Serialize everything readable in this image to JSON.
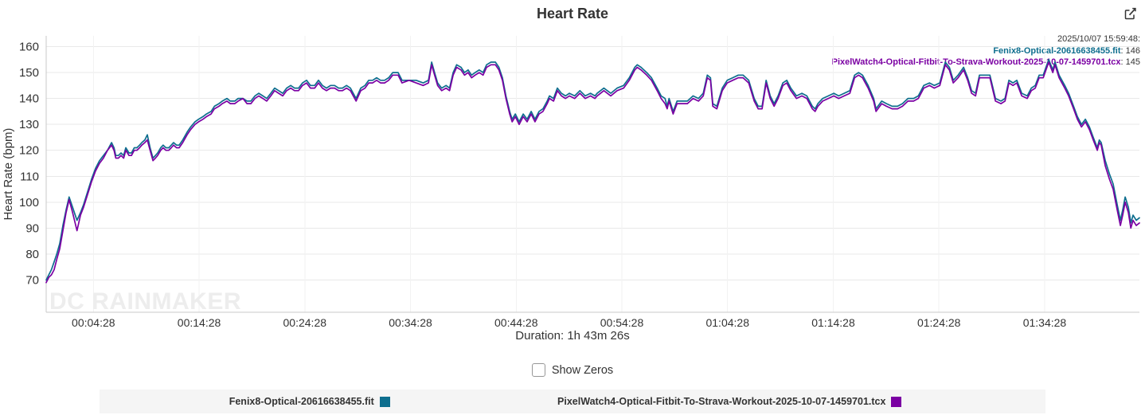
{
  "header": {
    "title": "Heart Rate"
  },
  "tooltip": {
    "datetime": "2025/10/07 15:59:48:",
    "rows": [
      {
        "name": "Fenix8-Optical-20616638455.fit",
        "value": ": 146",
        "color": "#0e6e8e"
      },
      {
        "name": "PixelWatch4-Optical-Fitbit-To-Strava-Workout-2025-10-07-1459701.tcx",
        "value": ": 145",
        "color": "#7b00a3"
      }
    ]
  },
  "controls": {
    "show_zeros_label": "Show Zeros",
    "show_zeros_checked": false
  },
  "legend": {
    "items": [
      {
        "label": "Fenix8-Optical-20616638455.fit",
        "color": "#0e6e8e"
      },
      {
        "label": "PixelWatch4-Optical-Fitbit-To-Strava-Workout-2025-10-07-1459701.tcx",
        "color": "#7b00a3"
      }
    ]
  },
  "chart_data": {
    "type": "line",
    "title": "Heart Rate",
    "ylabel": "Heart Rate (bpm)",
    "xlabel": "Duration: 1h 43m 26s",
    "watermark": "DC RAINMAKER",
    "grid": true,
    "legend_position": "bottom",
    "x_max_seconds": 6206,
    "ylim": [
      70,
      160
    ],
    "yticks": [
      70,
      80,
      90,
      100,
      110,
      120,
      130,
      140,
      150,
      160
    ],
    "xticks": [
      {
        "s": 268,
        "label": "00:04:28"
      },
      {
        "s": 868,
        "label": "00:14:28"
      },
      {
        "s": 1468,
        "label": "00:24:28"
      },
      {
        "s": 2068,
        "label": "00:34:28"
      },
      {
        "s": 2668,
        "label": "00:44:28"
      },
      {
        "s": 3268,
        "label": "00:54:28"
      },
      {
        "s": 3868,
        "label": "01:04:28"
      },
      {
        "s": 4468,
        "label": "01:14:28"
      },
      {
        "s": 5068,
        "label": "01:24:28"
      },
      {
        "s": 5668,
        "label": "01:34:28"
      }
    ],
    "series": [
      {
        "name": "Fenix8-Optical-20616638455.fit",
        "color": "#0e6e8e"
      },
      {
        "name": "PixelWatch4-Optical-Fitbit-To-Strava-Workout-2025-10-07-1459701.tcx",
        "color": "#7b00a3"
      }
    ],
    "points": [
      [
        0,
        70,
        69
      ],
      [
        15,
        72,
        71
      ],
      [
        30,
        74,
        72
      ],
      [
        45,
        77,
        74
      ],
      [
        60,
        80,
        78
      ],
      [
        77,
        84,
        82
      ],
      [
        95,
        91,
        89
      ],
      [
        113,
        97,
        96
      ],
      [
        130,
        102,
        101
      ],
      [
        150,
        98,
        96
      ],
      [
        175,
        93,
        89
      ],
      [
        195,
        96,
        95
      ],
      [
        212,
        99,
        98
      ],
      [
        235,
        104,
        103
      ],
      [
        258,
        109,
        108
      ],
      [
        280,
        113,
        112
      ],
      [
        303,
        116,
        115
      ],
      [
        325,
        118,
        117
      ],
      [
        348,
        120,
        120
      ],
      [
        371,
        123,
        122
      ],
      [
        385,
        121,
        120
      ],
      [
        395,
        118,
        117
      ],
      [
        410,
        118,
        117
      ],
      [
        425,
        119,
        118
      ],
      [
        440,
        118,
        117
      ],
      [
        452,
        121,
        120
      ],
      [
        470,
        119,
        118
      ],
      [
        484,
        119,
        118
      ],
      [
        500,
        121,
        120
      ],
      [
        515,
        121,
        120
      ],
      [
        530,
        122,
        121
      ],
      [
        543,
        123,
        122
      ],
      [
        560,
        124,
        123
      ],
      [
        574,
        126,
        124
      ],
      [
        590,
        121,
        120
      ],
      [
        606,
        117,
        116
      ],
      [
        620,
        118,
        117
      ],
      [
        633,
        119,
        118
      ],
      [
        650,
        121,
        120
      ],
      [
        664,
        122,
        121
      ],
      [
        680,
        121,
        120
      ],
      [
        696,
        121,
        120
      ],
      [
        710,
        122,
        121
      ],
      [
        723,
        123,
        122
      ],
      [
        740,
        122,
        121
      ],
      [
        755,
        122,
        121
      ],
      [
        775,
        124,
        123
      ],
      [
        800,
        127,
        126
      ],
      [
        820,
        129,
        128
      ],
      [
        845,
        131,
        130
      ],
      [
        865,
        132,
        131
      ],
      [
        890,
        133,
        132
      ],
      [
        910,
        134,
        133
      ],
      [
        936,
        135,
        134
      ],
      [
        955,
        137,
        136
      ],
      [
        981,
        138,
        137
      ],
      [
        1000,
        139,
        138
      ],
      [
        1026,
        140,
        139
      ],
      [
        1045,
        139,
        138
      ],
      [
        1071,
        139,
        138
      ],
      [
        1090,
        140,
        139
      ],
      [
        1117,
        140,
        140
      ],
      [
        1140,
        139,
        138
      ],
      [
        1162,
        139,
        138
      ],
      [
        1185,
        141,
        140
      ],
      [
        1207,
        142,
        141
      ],
      [
        1230,
        141,
        140
      ],
      [
        1252,
        140,
        139
      ],
      [
        1275,
        142,
        141
      ],
      [
        1297,
        144,
        143
      ],
      [
        1320,
        143,
        142
      ],
      [
        1343,
        142,
        141
      ],
      [
        1365,
        144,
        143
      ],
      [
        1388,
        145,
        144
      ],
      [
        1410,
        144,
        143
      ],
      [
        1433,
        144,
        143
      ],
      [
        1455,
        146,
        145
      ],
      [
        1478,
        147,
        146
      ],
      [
        1500,
        145,
        144
      ],
      [
        1524,
        145,
        144
      ],
      [
        1546,
        147,
        146
      ],
      [
        1568,
        145,
        144
      ],
      [
        1591,
        144,
        143
      ],
      [
        1614,
        145,
        144
      ],
      [
        1637,
        145,
        144
      ],
      [
        1660,
        144,
        143
      ],
      [
        1682,
        144,
        143
      ],
      [
        1705,
        145,
        144
      ],
      [
        1727,
        144,
        143
      ],
      [
        1759,
        140,
        139
      ],
      [
        1786,
        144,
        143
      ],
      [
        1810,
        145,
        144
      ],
      [
        1831,
        147,
        146
      ],
      [
        1853,
        147,
        146
      ],
      [
        1876,
        148,
        147
      ],
      [
        1898,
        147,
        146
      ],
      [
        1921,
        147,
        146
      ],
      [
        1944,
        148,
        147
      ],
      [
        1967,
        150,
        149
      ],
      [
        1998,
        150,
        149
      ],
      [
        2020,
        147,
        146
      ],
      [
        2060,
        147,
        147
      ],
      [
        2100,
        147,
        146
      ],
      [
        2140,
        146,
        145
      ],
      [
        2170,
        147,
        146
      ],
      [
        2188,
        154,
        153
      ],
      [
        2205,
        150,
        149
      ],
      [
        2222,
        146,
        145
      ],
      [
        2245,
        144,
        143
      ],
      [
        2270,
        145,
        144
      ],
      [
        2290,
        144,
        143
      ],
      [
        2310,
        150,
        149
      ],
      [
        2330,
        153,
        152
      ],
      [
        2355,
        152,
        151
      ],
      [
        2375,
        150,
        149
      ],
      [
        2395,
        151,
        150
      ],
      [
        2415,
        149,
        148
      ],
      [
        2435,
        150,
        149
      ],
      [
        2458,
        151,
        150
      ],
      [
        2480,
        150,
        149
      ],
      [
        2500,
        153,
        152
      ],
      [
        2525,
        154,
        153
      ],
      [
        2550,
        154,
        153
      ],
      [
        2570,
        152,
        151
      ],
      [
        2590,
        148,
        147
      ],
      [
        2610,
        141,
        140
      ],
      [
        2631,
        135,
        134
      ],
      [
        2645,
        132,
        131
      ],
      [
        2663,
        134,
        133
      ],
      [
        2685,
        131,
        130
      ],
      [
        2708,
        134,
        133
      ],
      [
        2730,
        132,
        131
      ],
      [
        2753,
        135,
        134
      ],
      [
        2775,
        132,
        131
      ],
      [
        2798,
        135,
        134
      ],
      [
        2820,
        136,
        135
      ],
      [
        2844,
        139,
        138
      ],
      [
        2857,
        141,
        140
      ],
      [
        2880,
        140,
        139
      ],
      [
        2902,
        144,
        143
      ],
      [
        2925,
        142,
        141
      ],
      [
        2948,
        141,
        140
      ],
      [
        2970,
        142,
        141
      ],
      [
        3000,
        141,
        140
      ],
      [
        3030,
        143,
        142
      ],
      [
        3060,
        141,
        140
      ],
      [
        3090,
        142,
        141
      ],
      [
        3115,
        141,
        140
      ],
      [
        3128,
        142,
        141
      ],
      [
        3166,
        144,
        143
      ],
      [
        3205,
        142,
        141
      ],
      [
        3241,
        144,
        143
      ],
      [
        3278,
        145,
        144
      ],
      [
        3310,
        148,
        147
      ],
      [
        3341,
        152,
        151
      ],
      [
        3355,
        153,
        152
      ],
      [
        3377,
        152,
        151
      ],
      [
        3409,
        150,
        149
      ],
      [
        3436,
        148,
        147
      ],
      [
        3468,
        144,
        143
      ],
      [
        3491,
        141,
        140
      ],
      [
        3513,
        140,
        138
      ],
      [
        3525,
        137,
        136
      ],
      [
        3536,
        140,
        139
      ],
      [
        3559,
        135,
        134
      ],
      [
        3581,
        139,
        138
      ],
      [
        3613,
        139,
        138
      ],
      [
        3640,
        139,
        138
      ],
      [
        3672,
        141,
        140
      ],
      [
        3703,
        140,
        139
      ],
      [
        3730,
        142,
        141
      ],
      [
        3753,
        149,
        148
      ],
      [
        3771,
        148,
        147
      ],
      [
        3784,
        138,
        137
      ],
      [
        3807,
        137,
        136
      ],
      [
        3838,
        144,
        143
      ],
      [
        3866,
        147,
        146
      ],
      [
        3897,
        148,
        147
      ],
      [
        3929,
        149,
        148
      ],
      [
        3956,
        149,
        148
      ],
      [
        3988,
        147,
        146
      ],
      [
        4019,
        140,
        139
      ],
      [
        4042,
        137,
        136
      ],
      [
        4064,
        137,
        136
      ],
      [
        4087,
        147,
        146
      ],
      [
        4110,
        141,
        140
      ],
      [
        4132,
        138,
        137
      ],
      [
        4155,
        141,
        140
      ],
      [
        4182,
        146,
        145
      ],
      [
        4204,
        147,
        146
      ],
      [
        4227,
        144,
        143
      ],
      [
        4259,
        141,
        140
      ],
      [
        4290,
        142,
        141
      ],
      [
        4318,
        141,
        140
      ],
      [
        4349,
        137,
        136
      ],
      [
        4365,
        136,
        135
      ],
      [
        4381,
        138,
        137
      ],
      [
        4408,
        140,
        139
      ],
      [
        4440,
        141,
        140
      ],
      [
        4471,
        142,
        141
      ],
      [
        4499,
        141,
        140
      ],
      [
        4530,
        142,
        141
      ],
      [
        4562,
        143,
        142
      ],
      [
        4589,
        149,
        148
      ],
      [
        4612,
        150,
        149
      ],
      [
        4634,
        149,
        148
      ],
      [
        4666,
        145,
        144
      ],
      [
        4697,
        140,
        139
      ],
      [
        4711,
        136,
        135
      ],
      [
        4743,
        139,
        138
      ],
      [
        4770,
        138,
        137
      ],
      [
        4802,
        137,
        136
      ],
      [
        4833,
        137,
        136
      ],
      [
        4861,
        138,
        137
      ],
      [
        4892,
        140,
        139
      ],
      [
        4924,
        140,
        139
      ],
      [
        4951,
        141,
        140
      ],
      [
        4982,
        145,
        144
      ],
      [
        5014,
        146,
        145
      ],
      [
        5041,
        145,
        144
      ],
      [
        5073,
        146,
        145
      ],
      [
        5104,
        154,
        153
      ],
      [
        5127,
        152,
        151
      ],
      [
        5149,
        147,
        146
      ],
      [
        5177,
        149,
        148
      ],
      [
        5208,
        152,
        151
      ],
      [
        5231,
        148,
        147
      ],
      [
        5253,
        143,
        142
      ],
      [
        5276,
        142,
        141
      ],
      [
        5298,
        149,
        148
      ],
      [
        5330,
        149,
        148
      ],
      [
        5357,
        149,
        148
      ],
      [
        5389,
        140,
        139
      ],
      [
        5420,
        139,
        138
      ],
      [
        5443,
        140,
        139
      ],
      [
        5465,
        147,
        146
      ],
      [
        5488,
        146,
        145
      ],
      [
        5510,
        147,
        146
      ],
      [
        5538,
        142,
        141
      ],
      [
        5569,
        141,
        140
      ],
      [
        5592,
        144,
        143
      ],
      [
        5615,
        145,
        144
      ],
      [
        5637,
        149,
        148
      ],
      [
        5660,
        149,
        148
      ],
      [
        5691,
        155,
        154
      ],
      [
        5714,
        151,
        150
      ],
      [
        5727,
        154,
        153
      ],
      [
        5750,
        149,
        148
      ],
      [
        5782,
        145,
        144
      ],
      [
        5804,
        142,
        141
      ],
      [
        5832,
        137,
        136
      ],
      [
        5854,
        133,
        132
      ],
      [
        5877,
        130,
        129
      ],
      [
        5899,
        132,
        131
      ],
      [
        5922,
        129,
        128
      ],
      [
        5944,
        125,
        124
      ],
      [
        5967,
        121,
        120
      ],
      [
        5978,
        124,
        123
      ],
      [
        5989,
        123,
        122
      ],
      [
        6012,
        116,
        114
      ],
      [
        6035,
        111,
        109
      ],
      [
        6057,
        107,
        105
      ],
      [
        6080,
        99,
        97
      ],
      [
        6098,
        93,
        91
      ],
      [
        6111,
        97,
        95
      ],
      [
        6125,
        102,
        100
      ],
      [
        6143,
        98,
        96
      ],
      [
        6157,
        92,
        90
      ],
      [
        6170,
        95,
        93
      ],
      [
        6188,
        93,
        91
      ],
      [
        6206,
        94,
        92
      ]
    ]
  }
}
